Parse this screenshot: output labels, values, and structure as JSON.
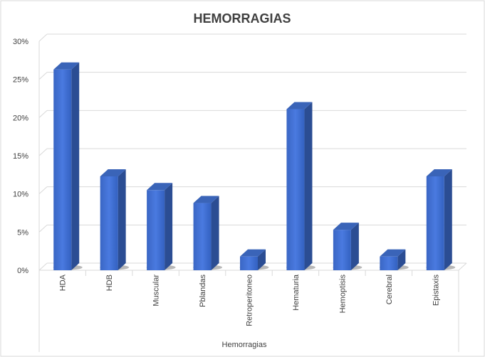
{
  "chart_data": {
    "type": "bar",
    "title": "HEMORRAGIAS",
    "xlabel": "Hemorragias",
    "ylabel": "",
    "categories": [
      "HDA",
      "HDB",
      "Muscular",
      "Pblandas",
      "Retroperitoneo",
      "Hematuria",
      "Hemoptisis",
      "Cerebral",
      "Epistaxis"
    ],
    "values": [
      26.3,
      12.3,
      10.5,
      8.8,
      1.8,
      21.1,
      5.3,
      1.8,
      12.3
    ],
    "ylim": [
      0,
      30
    ],
    "yticks": [
      "0%",
      "5%",
      "10%",
      "15%",
      "20%",
      "25%",
      "30%"
    ],
    "grid": true,
    "legend": "none",
    "bar_color": "#4472C4"
  }
}
